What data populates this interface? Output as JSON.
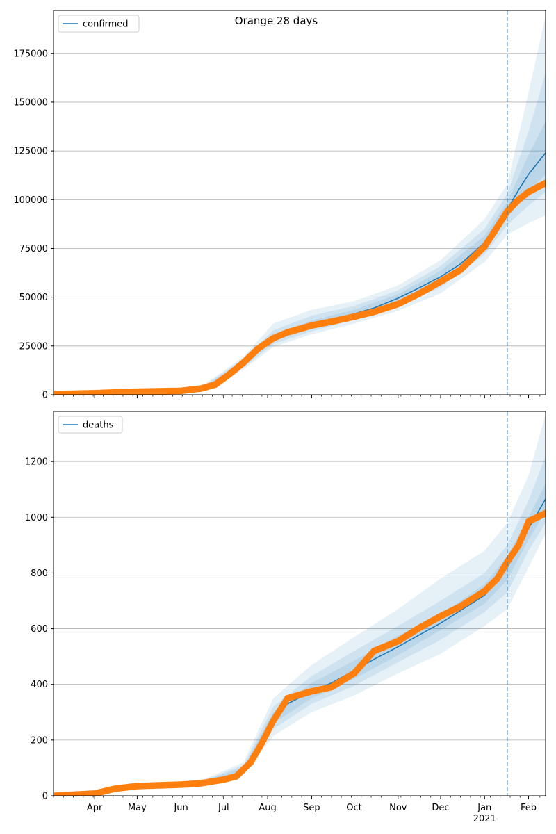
{
  "figure_title": "Orange 28 days",
  "colors": {
    "model": "#1f77b4",
    "observed": "#ff7f0e",
    "band": "#1f77b4",
    "grid": "#b0b0b0",
    "forecast_line": "#1f77b4"
  },
  "x_tick_labels": [
    {
      "date": "2020-04-01",
      "label": "Apr",
      "sub": ""
    },
    {
      "date": "2020-05-01",
      "label": "May",
      "sub": ""
    },
    {
      "date": "2020-06-01",
      "label": "Jun",
      "sub": ""
    },
    {
      "date": "2020-07-01",
      "label": "Jul",
      "sub": ""
    },
    {
      "date": "2020-08-01",
      "label": "Aug",
      "sub": ""
    },
    {
      "date": "2020-09-01",
      "label": "Sep",
      "sub": ""
    },
    {
      "date": "2020-10-01",
      "label": "Oct",
      "sub": ""
    },
    {
      "date": "2020-11-01",
      "label": "Nov",
      "sub": ""
    },
    {
      "date": "2020-12-01",
      "label": "Dec",
      "sub": ""
    },
    {
      "date": "2021-01-01",
      "label": "Jan",
      "sub": "2021"
    },
    {
      "date": "2021-02-01",
      "label": "Feb",
      "sub": ""
    }
  ],
  "chart_data": [
    {
      "type": "line",
      "xlim": [
        "2020-03-03",
        "2021-02-13"
      ],
      "ylim": [
        0,
        197000
      ],
      "yticks": [
        0,
        25000,
        50000,
        75000,
        100000,
        125000,
        150000,
        175000
      ],
      "grid": true,
      "legend": {
        "placement": "top-left",
        "label": "confirmed"
      },
      "forecast_start": "2021-01-17",
      "series": [
        {
          "name": "confirmed",
          "kind": "model_line",
          "x": [
            "2020-03-03",
            "2020-04-01",
            "2020-05-01",
            "2020-06-01",
            "2020-06-15",
            "2020-06-25",
            "2020-07-05",
            "2020-07-15",
            "2020-07-25",
            "2020-08-05",
            "2020-08-15",
            "2020-09-01",
            "2020-09-15",
            "2020-10-01",
            "2020-10-15",
            "2020-11-01",
            "2020-11-15",
            "2020-12-01",
            "2020-12-15",
            "2021-01-01",
            "2021-01-17",
            "2021-01-25",
            "2021-02-01",
            "2021-02-13"
          ],
          "y": [
            300,
            700,
            1500,
            2000,
            3000,
            5000,
            9500,
            16000,
            23000,
            28500,
            31500,
            35500,
            38500,
            41500,
            44500,
            49500,
            54500,
            60500,
            67000,
            78000,
            95000,
            105000,
            113000,
            124000
          ]
        },
        {
          "name": "",
          "kind": "observed_points",
          "x": [
            "2020-03-03",
            "2020-04-01",
            "2020-05-01",
            "2020-06-01",
            "2020-06-15",
            "2020-06-25",
            "2020-07-05",
            "2020-07-15",
            "2020-07-25",
            "2020-08-05",
            "2020-08-15",
            "2020-09-01",
            "2020-09-15",
            "2020-10-01",
            "2020-10-15",
            "2020-11-01",
            "2020-11-15",
            "2020-12-01",
            "2020-12-15",
            "2021-01-01",
            "2021-01-10",
            "2021-01-17",
            "2021-01-25",
            "2021-02-01",
            "2021-02-13"
          ],
          "y": [
            300,
            800,
            1600,
            2000,
            3200,
            5200,
            10500,
            16500,
            23500,
            29000,
            32000,
            35500,
            37500,
            40000,
            42500,
            46500,
            51500,
            58000,
            64000,
            76000,
            86000,
            94000,
            100000,
            104000,
            108500
          ]
        }
      ],
      "bands": [
        {
          "x": [
            "2020-06-15",
            "2020-07-15",
            "2020-08-05",
            "2020-09-01",
            "2020-10-01",
            "2020-11-01",
            "2020-12-01",
            "2021-01-01",
            "2021-01-17",
            "2021-02-01",
            "2021-02-13"
          ],
          "lower": [
            2500,
            13000,
            24500,
            31000,
            36500,
            43000,
            52000,
            68000,
            82000,
            88000,
            92000
          ],
          "upper": [
            4000,
            19500,
            36500,
            43500,
            48000,
            56000,
            69000,
            90000,
            108000,
            155000,
            194000
          ]
        },
        {
          "x": [
            "2020-06-15",
            "2020-07-15",
            "2020-08-05",
            "2020-09-01",
            "2020-10-01",
            "2020-11-01",
            "2020-12-01",
            "2021-01-01",
            "2021-01-17",
            "2021-02-01",
            "2021-02-13"
          ],
          "lower": [
            2700,
            14000,
            26000,
            32500,
            38500,
            45500,
            55000,
            72000,
            87000,
            97000,
            104000
          ],
          "upper": [
            3600,
            18500,
            33000,
            40500,
            45500,
            53500,
            66000,
            85000,
            103000,
            135000,
            165000
          ]
        },
        {
          "x": [
            "2020-06-15",
            "2020-07-15",
            "2020-08-05",
            "2020-09-01",
            "2020-10-01",
            "2020-11-01",
            "2020-12-01",
            "2021-01-01",
            "2021-01-17",
            "2021-02-01",
            "2021-02-13"
          ],
          "lower": [
            2850,
            15000,
            27500,
            34000,
            40000,
            47500,
            57500,
            75000,
            91000,
            104000,
            113000
          ],
          "upper": [
            3300,
            17200,
            30500,
            38000,
            43500,
            51500,
            63500,
            81500,
            99000,
            123000,
            140000
          ]
        }
      ]
    },
    {
      "type": "line",
      "xlim": [
        "2020-03-03",
        "2021-02-13"
      ],
      "ylim": [
        0,
        1380
      ],
      "yticks": [
        0,
        200,
        400,
        600,
        800,
        1000,
        1200
      ],
      "grid": true,
      "legend": {
        "placement": "top-left",
        "label": "deaths"
      },
      "forecast_start": "2021-01-17",
      "series": [
        {
          "name": "deaths",
          "kind": "model_line",
          "x": [
            "2020-03-03",
            "2020-04-01",
            "2020-04-15",
            "2020-05-01",
            "2020-06-01",
            "2020-06-15",
            "2020-07-01",
            "2020-07-15",
            "2020-07-25",
            "2020-08-05",
            "2020-08-15",
            "2020-09-01",
            "2020-09-15",
            "2020-10-01",
            "2020-10-15",
            "2020-11-01",
            "2020-11-15",
            "2020-12-01",
            "2020-12-15",
            "2021-01-01",
            "2021-01-17",
            "2021-02-01",
            "2021-02-13"
          ],
          "y": [
            0,
            8,
            22,
            33,
            40,
            45,
            57,
            95,
            160,
            280,
            330,
            375,
            405,
            450,
            490,
            535,
            575,
            620,
            665,
            720,
            820,
            960,
            1065
          ]
        },
        {
          "name": "",
          "kind": "observed_points",
          "x": [
            "2020-03-03",
            "2020-04-01",
            "2020-04-15",
            "2020-05-01",
            "2020-06-01",
            "2020-06-15",
            "2020-07-01",
            "2020-07-10",
            "2020-07-20",
            "2020-07-28",
            "2020-08-05",
            "2020-08-15",
            "2020-09-01",
            "2020-09-15",
            "2020-10-01",
            "2020-10-15",
            "2020-11-01",
            "2020-11-15",
            "2020-12-01",
            "2020-12-15",
            "2021-01-01",
            "2021-01-10",
            "2021-01-17",
            "2021-01-25",
            "2021-02-01",
            "2021-02-13"
          ],
          "y": [
            0,
            8,
            25,
            35,
            40,
            45,
            58,
            70,
            120,
            190,
            270,
            350,
            375,
            390,
            440,
            520,
            555,
            600,
            645,
            680,
            735,
            780,
            840,
            900,
            985,
            1015
          ]
        }
      ],
      "bands": [
        {
          "x": [
            "2020-06-15",
            "2020-07-15",
            "2020-08-05",
            "2020-09-01",
            "2020-10-01",
            "2020-11-01",
            "2020-12-01",
            "2021-01-01",
            "2021-01-17",
            "2021-02-01",
            "2021-02-13"
          ],
          "lower": [
            35,
            75,
            215,
            300,
            360,
            440,
            510,
            610,
            670,
            820,
            940
          ],
          "upper": [
            55,
            120,
            350,
            470,
            570,
            670,
            780,
            880,
            980,
            1150,
            1370
          ]
        },
        {
          "x": [
            "2020-06-15",
            "2020-07-15",
            "2020-08-05",
            "2020-09-01",
            "2020-10-01",
            "2020-11-01",
            "2020-12-01",
            "2021-01-01",
            "2021-01-17",
            "2021-02-01",
            "2021-02-13"
          ],
          "lower": [
            38,
            82,
            240,
            330,
            395,
            480,
            560,
            660,
            730,
            880,
            980
          ],
          "upper": [
            52,
            110,
            320,
            430,
            520,
            610,
            700,
            800,
            900,
            1060,
            1220
          ]
        },
        {
          "x": [
            "2020-06-15",
            "2020-07-15",
            "2020-08-05",
            "2020-09-01",
            "2020-10-01",
            "2020-11-01",
            "2020-12-01",
            "2021-01-01",
            "2021-01-17",
            "2021-02-01",
            "2021-02-13"
          ],
          "lower": [
            41,
            88,
            260,
            350,
            420,
            505,
            595,
            690,
            775,
            920,
            1020
          ],
          "upper": [
            49,
            102,
            300,
            405,
            485,
            575,
            650,
            760,
            860,
            1000,
            1120
          ]
        }
      ]
    }
  ]
}
